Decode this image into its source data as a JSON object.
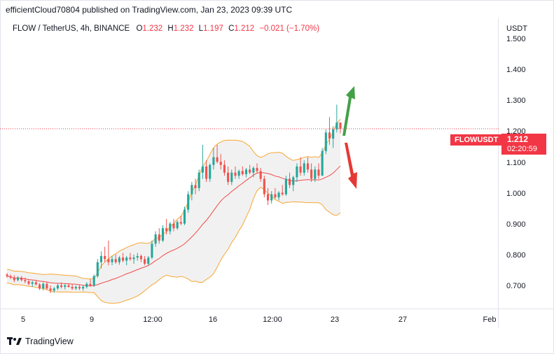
{
  "header": {
    "published_line": "efficientCloud70804 published on TradingView.com, Jan 23, 2023 09:39 UTC"
  },
  "legend": {
    "symbol": "FLOW / TetherUS, 4h, BINANCE",
    "o_label": "O",
    "o_value": "1.232",
    "h_label": "H",
    "h_value": "1.232",
    "l_label": "L",
    "l_value": "1.197",
    "c_label": "C",
    "c_value": "1.212",
    "change": "−0.021 (−1.70%)"
  },
  "price_tag": {
    "symbol": "FLOWUSDT",
    "price": "1.212",
    "countdown": "02:20:59"
  },
  "footer": {
    "brand": "TradingView"
  },
  "colors": {
    "up": "#26a69a",
    "down": "#ef5350",
    "band_upper": "#f7a734",
    "band_lower": "#f7a734",
    "basis": "#f04a4a",
    "band_fill": "#eeeeee",
    "arrow_up": "#43a047",
    "arrow_down": "#e53935",
    "tag": "#f23645"
  },
  "chart_data": {
    "type": "candlestick",
    "title": "FLOW / TetherUS, 4h, BINANCE",
    "currency": "USDT",
    "y_ticks": [
      "1.500",
      "1.400",
      "1.300",
      "1.200",
      "1.100",
      "1.000",
      "0.900",
      "0.800",
      "0.700"
    ],
    "y_range": [
      0.63,
      1.57
    ],
    "x_ticks": [
      "5",
      "9",
      "12:00",
      "16",
      "12:00",
      "23",
      "27",
      "Feb"
    ],
    "last_price": 1.212,
    "indicator": "Bollinger Bands",
    "candles": [
      [
        0.74,
        0.745,
        0.73,
        0.735
      ],
      [
        0.735,
        0.74,
        0.725,
        0.73
      ],
      [
        0.73,
        0.738,
        0.715,
        0.722
      ],
      [
        0.722,
        0.735,
        0.718,
        0.73
      ],
      [
        0.73,
        0.735,
        0.718,
        0.722
      ],
      [
        0.722,
        0.73,
        0.712,
        0.718
      ],
      [
        0.718,
        0.725,
        0.705,
        0.71
      ],
      [
        0.71,
        0.72,
        0.7,
        0.715
      ],
      [
        0.715,
        0.722,
        0.705,
        0.708
      ],
      [
        0.708,
        0.712,
        0.69,
        0.695
      ],
      [
        0.695,
        0.715,
        0.688,
        0.71
      ],
      [
        0.71,
        0.715,
        0.69,
        0.695
      ],
      [
        0.695,
        0.705,
        0.68,
        0.688
      ],
      [
        0.688,
        0.7,
        0.682,
        0.695
      ],
      [
        0.695,
        0.71,
        0.69,
        0.705
      ],
      [
        0.705,
        0.715,
        0.695,
        0.7
      ],
      [
        0.7,
        0.71,
        0.692,
        0.705
      ],
      [
        0.705,
        0.712,
        0.698,
        0.7
      ],
      [
        0.7,
        0.708,
        0.69,
        0.695
      ],
      [
        0.695,
        0.705,
        0.69,
        0.7
      ],
      [
        0.7,
        0.706,
        0.69,
        0.695
      ],
      [
        0.695,
        0.705,
        0.688,
        0.7
      ],
      [
        0.7,
        0.715,
        0.695,
        0.71
      ],
      [
        0.71,
        0.725,
        0.7,
        0.705
      ],
      [
        0.705,
        0.74,
        0.7,
        0.735
      ],
      [
        0.735,
        0.79,
        0.73,
        0.78
      ],
      [
        0.78,
        0.815,
        0.76,
        0.8
      ],
      [
        0.8,
        0.83,
        0.78,
        0.79
      ],
      [
        0.79,
        0.85,
        0.77,
        0.78
      ],
      [
        0.78,
        0.8,
        0.77,
        0.79
      ],
      [
        0.79,
        0.805,
        0.775,
        0.78
      ],
      [
        0.78,
        0.8,
        0.772,
        0.795
      ],
      [
        0.795,
        0.81,
        0.78,
        0.785
      ],
      [
        0.785,
        0.8,
        0.77,
        0.795
      ],
      [
        0.795,
        0.81,
        0.785,
        0.79
      ],
      [
        0.79,
        0.805,
        0.775,
        0.795
      ],
      [
        0.795,
        0.81,
        0.785,
        0.8
      ],
      [
        0.8,
        0.805,
        0.78,
        0.79
      ],
      [
        0.79,
        0.8,
        0.77,
        0.775
      ],
      [
        0.775,
        0.8,
        0.77,
        0.795
      ],
      [
        0.795,
        0.85,
        0.79,
        0.84
      ],
      [
        0.84,
        0.88,
        0.83,
        0.87
      ],
      [
        0.87,
        0.89,
        0.84,
        0.85
      ],
      [
        0.85,
        0.9,
        0.845,
        0.89
      ],
      [
        0.89,
        0.92,
        0.87,
        0.88
      ],
      [
        0.88,
        0.91,
        0.87,
        0.905
      ],
      [
        0.905,
        0.92,
        0.88,
        0.89
      ],
      [
        0.89,
        0.915,
        0.885,
        0.91
      ],
      [
        0.91,
        0.93,
        0.9,
        0.905
      ],
      [
        0.905,
        0.96,
        0.9,
        0.95
      ],
      [
        0.95,
        1.01,
        0.94,
        1.0
      ],
      [
        1.0,
        1.04,
        0.98,
        1.03
      ],
      [
        1.03,
        1.05,
        1.0,
        1.02
      ],
      [
        1.02,
        1.08,
        1.01,
        1.07
      ],
      [
        1.07,
        1.16,
        1.05,
        1.09
      ],
      [
        1.09,
        1.11,
        1.04,
        1.05
      ],
      [
        1.05,
        1.1,
        1.04,
        1.095
      ],
      [
        1.095,
        1.15,
        1.08,
        1.12
      ],
      [
        1.12,
        1.16,
        1.1,
        1.105
      ],
      [
        1.105,
        1.13,
        1.08,
        1.095
      ],
      [
        1.095,
        1.11,
        1.06,
        1.07
      ],
      [
        1.07,
        1.09,
        1.03,
        1.04
      ],
      [
        1.04,
        1.08,
        1.03,
        1.07
      ],
      [
        1.07,
        1.09,
        1.05,
        1.06
      ],
      [
        1.06,
        1.08,
        1.05,
        1.075
      ],
      [
        1.075,
        1.09,
        1.06,
        1.065
      ],
      [
        1.065,
        1.085,
        1.055,
        1.08
      ],
      [
        1.08,
        1.095,
        1.065,
        1.07
      ],
      [
        1.07,
        1.09,
        1.055,
        1.085
      ],
      [
        1.085,
        1.1,
        1.07,
        1.075
      ],
      [
        1.075,
        1.085,
        1.04,
        1.05
      ],
      [
        1.05,
        1.06,
        0.99,
        1.0
      ],
      [
        1.0,
        1.02,
        0.965,
        0.98
      ],
      [
        0.98,
        1.01,
        0.97,
        1.0
      ],
      [
        1.0,
        1.02,
        0.985,
        0.99
      ],
      [
        0.99,
        1.01,
        0.98,
        1.005
      ],
      [
        1.005,
        1.03,
        0.995,
        1.0
      ],
      [
        1.0,
        1.06,
        0.995,
        1.05
      ],
      [
        1.05,
        1.07,
        1.02,
        1.03
      ],
      [
        1.03,
        1.06,
        1.01,
        1.055
      ],
      [
        1.055,
        1.1,
        1.04,
        1.09
      ],
      [
        1.09,
        1.12,
        1.06,
        1.07
      ],
      [
        1.07,
        1.11,
        1.06,
        1.1
      ],
      [
        1.1,
        1.12,
        1.07,
        1.08
      ],
      [
        1.08,
        1.1,
        1.04,
        1.05
      ],
      [
        1.05,
        1.09,
        1.04,
        1.08
      ],
      [
        1.08,
        1.1,
        1.05,
        1.06
      ],
      [
        1.06,
        1.15,
        1.06,
        1.14
      ],
      [
        1.14,
        1.21,
        1.13,
        1.2
      ],
      [
        1.2,
        1.25,
        1.16,
        1.18
      ],
      [
        1.18,
        1.22,
        1.15,
        1.21
      ],
      [
        1.21,
        1.29,
        1.2,
        1.232
      ],
      [
        1.232,
        1.232,
        1.197,
        1.212
      ]
    ]
  }
}
